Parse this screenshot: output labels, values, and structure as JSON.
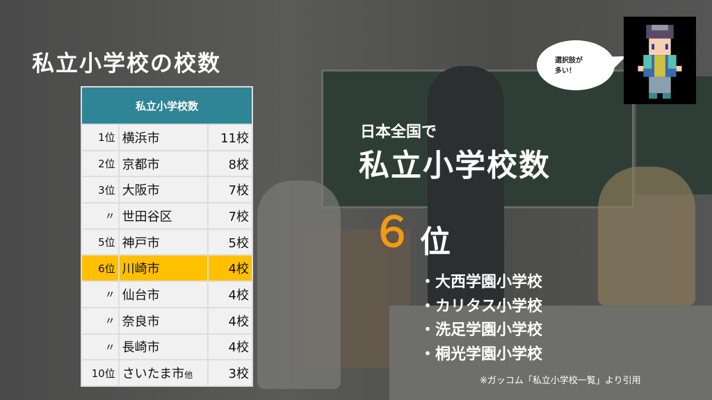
{
  "title": "私立小学校の校数",
  "table": {
    "header": "私立小学校数",
    "rows": [
      {
        "rank": "1位",
        "city": "横浜市",
        "count": "11校"
      },
      {
        "rank": "2位",
        "city": "京都市",
        "count": "8校"
      },
      {
        "rank": "3位",
        "city": "大阪市",
        "count": "7校"
      },
      {
        "rank": "〃",
        "city": "世田谷区",
        "count": "7校"
      },
      {
        "rank": "5位",
        "city": "神戸市",
        "count": "5校"
      },
      {
        "rank": "6位",
        "city": "川崎市",
        "count": "4校",
        "highlight": true
      },
      {
        "rank": "〃",
        "city": "仙台市",
        "count": "4校"
      },
      {
        "rank": "〃",
        "city": "奈良市",
        "count": "4校"
      },
      {
        "rank": "〃",
        "city": "長崎市",
        "count": "4校"
      },
      {
        "rank": "10位",
        "city": "さいたま市",
        "suffix": "他",
        "count": "3校"
      }
    ],
    "highlight_color": "#ffc000",
    "header_color": "#2f8496"
  },
  "headline": {
    "line1": "日本全国で",
    "line2": "私立小学校数",
    "rank_number": "６",
    "rank_unit": "位",
    "rank_color": "#f29a12"
  },
  "schools": [
    "大西学園小学校",
    "カリタス小学校",
    "洗足学園小学校",
    "桐光学園小学校"
  ],
  "note": "※ガッコム「私立小学校一覧」より引用",
  "speech": {
    "line1": "選択肢が",
    "line2": "多い！"
  },
  "avatar": "pixel-character-icon"
}
